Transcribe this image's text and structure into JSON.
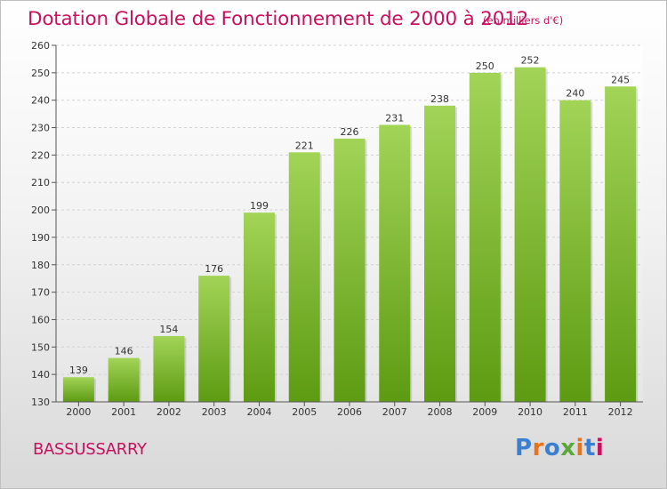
{
  "title": "Dotation Globale de Fonctionnement de 2000 à 2012",
  "unit_note": "(en milliers d'€)",
  "city": "BASSUSSARRY",
  "logo": {
    "text": "Proxiti",
    "letter_colors": [
      "#3a7fd0",
      "#e8731c",
      "#3a7fd0",
      "#5aa83a",
      "#e8731c",
      "#3a7fd0",
      "#c8105f"
    ]
  },
  "colors": {
    "bar_top": "#a2d457",
    "bar_bottom": "#5d9b12",
    "title": "#c8105f"
  },
  "chart_data": {
    "type": "bar",
    "title": "Dotation Globale de Fonctionnement de 2000 à 2012",
    "xlabel": "",
    "ylabel": "",
    "categories": [
      "2000",
      "2001",
      "2002",
      "2003",
      "2004",
      "2005",
      "2006",
      "2007",
      "2008",
      "2009",
      "2010",
      "2011",
      "2012"
    ],
    "values": [
      139,
      146,
      154,
      176,
      199,
      221,
      226,
      231,
      238,
      250,
      252,
      240,
      245
    ],
    "ylim": [
      130,
      260
    ],
    "yticks": [
      130,
      140,
      150,
      160,
      170,
      180,
      190,
      200,
      210,
      220,
      230,
      240,
      250,
      260
    ],
    "grid": true,
    "legend": "none"
  }
}
